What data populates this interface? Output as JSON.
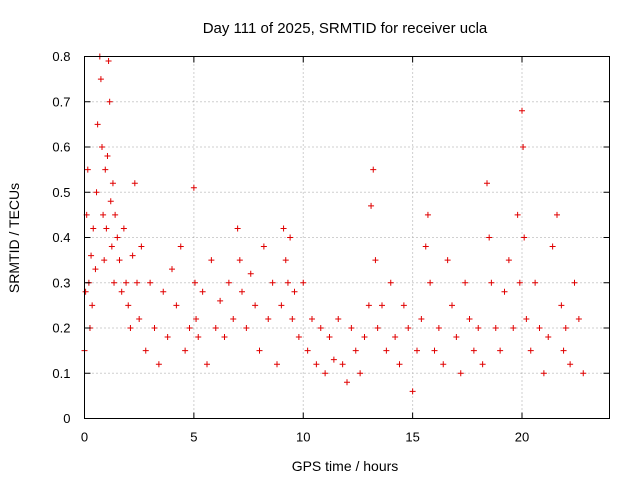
{
  "chart_data": {
    "type": "scatter",
    "title": "Day 111 of 2025, SRMTID for receiver ucla",
    "xlabel": "GPS time / hours",
    "ylabel": "SRMTID / TECUs",
    "xlim": [
      0,
      24
    ],
    "ylim": [
      0,
      0.8
    ],
    "x_ticks": [
      0,
      5,
      10,
      15,
      20
    ],
    "y_ticks": [
      0,
      0.1,
      0.2,
      0.3,
      0.4,
      0.5,
      0.6,
      0.7,
      0.8
    ],
    "x_tick_labels": [
      "0",
      "5",
      "10",
      "15",
      "20"
    ],
    "y_tick_labels": [
      "0",
      "0.1",
      "0.2",
      "0.3",
      "0.4",
      "0.5",
      "0.6",
      "0.7",
      "0.8"
    ],
    "grid": true,
    "marker": "+",
    "marker_color": "#e00000",
    "series": [
      {
        "name": "SRMTID",
        "x": [
          0.0,
          0.05,
          0.1,
          0.15,
          0.2,
          0.25,
          0.3,
          0.35,
          0.4,
          0.5,
          0.55,
          0.6,
          0.7,
          0.75,
          0.8,
          0.85,
          0.9,
          0.95,
          1.0,
          1.05,
          1.1,
          1.15,
          1.2,
          1.25,
          1.3,
          1.35,
          1.4,
          1.5,
          1.6,
          1.7,
          1.8,
          1.9,
          2.0,
          2.1,
          2.2,
          2.3,
          2.4,
          2.5,
          2.6,
          2.8,
          3.0,
          3.2,
          3.4,
          3.6,
          3.8,
          4.0,
          4.2,
          4.4,
          4.6,
          4.8,
          5.0,
          5.05,
          5.1,
          5.2,
          5.4,
          5.6,
          5.8,
          6.0,
          6.2,
          6.4,
          6.6,
          6.8,
          7.0,
          7.1,
          7.2,
          7.4,
          7.6,
          7.8,
          8.0,
          8.2,
          8.4,
          8.6,
          8.8,
          9.0,
          9.1,
          9.2,
          9.3,
          9.4,
          9.5,
          9.6,
          9.8,
          10.0,
          10.2,
          10.4,
          10.6,
          10.8,
          11.0,
          11.2,
          11.4,
          11.6,
          11.8,
          12.0,
          12.2,
          12.4,
          12.6,
          12.8,
          13.0,
          13.1,
          13.2,
          13.3,
          13.4,
          13.6,
          13.8,
          14.0,
          14.2,
          14.4,
          14.6,
          14.8,
          15.0,
          15.2,
          15.4,
          15.6,
          15.7,
          15.8,
          16.0,
          16.2,
          16.4,
          16.6,
          16.8,
          17.0,
          17.2,
          17.4,
          17.6,
          17.8,
          18.0,
          18.2,
          18.4,
          18.5,
          18.6,
          18.8,
          19.0,
          19.2,
          19.4,
          19.6,
          19.8,
          19.9,
          20.0,
          20.05,
          20.1,
          20.2,
          20.4,
          20.6,
          20.8,
          21.0,
          21.2,
          21.4,
          21.6,
          21.8,
          21.9,
          22.0,
          22.2,
          22.4,
          22.6,
          22.8
        ],
        "y": [
          0.15,
          0.28,
          0.45,
          0.55,
          0.3,
          0.2,
          0.36,
          0.25,
          0.42,
          0.33,
          0.5,
          0.65,
          0.8,
          0.75,
          0.6,
          0.45,
          0.35,
          0.55,
          0.42,
          0.58,
          0.79,
          0.7,
          0.48,
          0.38,
          0.52,
          0.3,
          0.45,
          0.4,
          0.35,
          0.28,
          0.42,
          0.3,
          0.25,
          0.2,
          0.36,
          0.52,
          0.3,
          0.22,
          0.38,
          0.15,
          0.3,
          0.2,
          0.12,
          0.28,
          0.18,
          0.33,
          0.25,
          0.38,
          0.15,
          0.2,
          0.51,
          0.3,
          0.22,
          0.18,
          0.28,
          0.12,
          0.35,
          0.2,
          0.26,
          0.18,
          0.3,
          0.22,
          0.42,
          0.35,
          0.28,
          0.2,
          0.32,
          0.25,
          0.15,
          0.38,
          0.22,
          0.3,
          0.12,
          0.25,
          0.42,
          0.35,
          0.3,
          0.4,
          0.22,
          0.28,
          0.18,
          0.3,
          0.15,
          0.22,
          0.12,
          0.2,
          0.1,
          0.18,
          0.13,
          0.22,
          0.12,
          0.08,
          0.2,
          0.15,
          0.1,
          0.18,
          0.25,
          0.47,
          0.55,
          0.35,
          0.2,
          0.25,
          0.15,
          0.3,
          0.18,
          0.12,
          0.25,
          0.2,
          0.06,
          0.15,
          0.22,
          0.38,
          0.45,
          0.3,
          0.15,
          0.2,
          0.12,
          0.35,
          0.25,
          0.18,
          0.1,
          0.3,
          0.22,
          0.15,
          0.2,
          0.12,
          0.52,
          0.4,
          0.3,
          0.2,
          0.15,
          0.28,
          0.35,
          0.2,
          0.45,
          0.3,
          0.68,
          0.6,
          0.4,
          0.22,
          0.15,
          0.3,
          0.2,
          0.1,
          0.18,
          0.38,
          0.45,
          0.25,
          0.15,
          0.2,
          0.12,
          0.3,
          0.22,
          0.1
        ]
      }
    ]
  }
}
